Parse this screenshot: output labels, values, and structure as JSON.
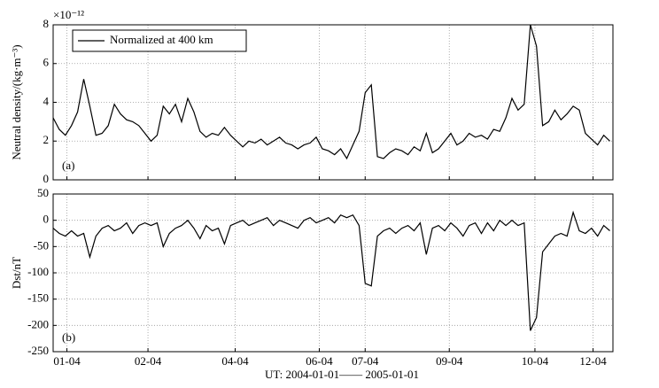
{
  "chart_data": [
    {
      "type": "line",
      "ylabel": "Neutral density/(kg·m⁻³)",
      "y_multiplier": "×10⁻¹²",
      "panel_label": "(a)",
      "legend": "upper left",
      "grid": true,
      "x": [
        0,
        4,
        8,
        12,
        16,
        20,
        24,
        28,
        32,
        36,
        40,
        44,
        48,
        52,
        56,
        60,
        64,
        68,
        72,
        76,
        80,
        84,
        88,
        92,
        96,
        100,
        104,
        108,
        112,
        116,
        120,
        124,
        128,
        132,
        136,
        140,
        144,
        148,
        152,
        156,
        160,
        164,
        168,
        172,
        176,
        180,
        184,
        188,
        192,
        196,
        200,
        204,
        208,
        212,
        216,
        220,
        224,
        228,
        232,
        236,
        240,
        244,
        248,
        252,
        256,
        260,
        264,
        268,
        272,
        276,
        280,
        284,
        288,
        292,
        296,
        300,
        304,
        308,
        312,
        316,
        320,
        324,
        328,
        332,
        336,
        340,
        344,
        348,
        352,
        356,
        360,
        364
      ],
      "xlim": [
        0,
        366
      ],
      "xticks": [
        {
          "value": 9,
          "label": "01-04"
        },
        {
          "value": 62,
          "label": "02-04"
        },
        {
          "value": 119,
          "label": "04-04"
        },
        {
          "value": 174,
          "label": "06-04"
        },
        {
          "value": 204,
          "label": "07-04"
        },
        {
          "value": 259,
          "label": "09-04"
        },
        {
          "value": 315,
          "label": "10-04"
        },
        {
          "value": 353,
          "label": "12-04"
        }
      ],
      "ylim": [
        0,
        8
      ],
      "yticks": [
        0,
        2,
        4,
        6,
        8
      ],
      "series": [
        {
          "name": "Normalized at 400 km",
          "color": "#000000",
          "values": [
            3.2,
            2.6,
            2.3,
            2.8,
            3.5,
            5.2,
            3.8,
            2.3,
            2.4,
            2.8,
            3.9,
            3.4,
            3.1,
            3.0,
            2.8,
            2.4,
            2.0,
            2.3,
            3.8,
            3.4,
            3.9,
            3.0,
            4.2,
            3.5,
            2.5,
            2.2,
            2.4,
            2.3,
            2.7,
            2.3,
            2.0,
            1.7,
            2.0,
            1.9,
            2.1,
            1.8,
            2.0,
            2.2,
            1.9,
            1.8,
            1.6,
            1.8,
            1.9,
            2.2,
            1.6,
            1.5,
            1.3,
            1.6,
            1.1,
            1.8,
            2.5,
            4.5,
            4.9,
            1.2,
            1.1,
            1.4,
            1.6,
            1.5,
            1.3,
            1.7,
            1.5,
            2.4,
            1.4,
            1.6,
            2.0,
            2.4,
            1.8,
            2.0,
            2.4,
            2.2,
            2.3,
            2.1,
            2.6,
            2.5,
            3.2,
            4.2,
            3.6,
            3.9,
            8.0,
            6.9,
            2.8,
            3.0,
            3.6,
            3.1,
            3.4,
            3.8,
            3.6,
            2.4,
            2.1,
            1.8,
            2.3,
            2.0
          ]
        }
      ]
    },
    {
      "type": "line",
      "ylabel": "Dst/nT",
      "panel_label": "(b)",
      "xlabel": "UT: 2004-01-01—— 2005-01-01",
      "grid": true,
      "x": [
        0,
        4,
        8,
        12,
        16,
        20,
        24,
        28,
        32,
        36,
        40,
        44,
        48,
        52,
        56,
        60,
        64,
        68,
        72,
        76,
        80,
        84,
        88,
        92,
        96,
        100,
        104,
        108,
        112,
        116,
        120,
        124,
        128,
        132,
        136,
        140,
        144,
        148,
        152,
        156,
        160,
        164,
        168,
        172,
        176,
        180,
        184,
        188,
        192,
        196,
        200,
        204,
        208,
        212,
        216,
        220,
        224,
        228,
        232,
        236,
        240,
        244,
        248,
        252,
        256,
        260,
        264,
        268,
        272,
        276,
        280,
        284,
        288,
        292,
        296,
        300,
        304,
        308,
        312,
        316,
        320,
        324,
        328,
        332,
        336,
        340,
        344,
        348,
        352,
        356,
        360,
        364
      ],
      "xlim": [
        0,
        366
      ],
      "xticks": [
        {
          "value": 9,
          "label": "01-04"
        },
        {
          "value": 62,
          "label": "02-04"
        },
        {
          "value": 119,
          "label": "04-04"
        },
        {
          "value": 174,
          "label": "06-04"
        },
        {
          "value": 204,
          "label": "07-04"
        },
        {
          "value": 259,
          "label": "09-04"
        },
        {
          "value": 315,
          "label": "10-04"
        },
        {
          "value": 353,
          "label": "12-04"
        }
      ],
      "ylim": [
        -250,
        50
      ],
      "yticks": [
        50,
        0,
        -50,
        -100,
        -150,
        -200,
        -250
      ],
      "series": [
        {
          "color": "#000000",
          "values": [
            -15,
            -25,
            -30,
            -20,
            -30,
            -25,
            -70,
            -30,
            -15,
            -10,
            -20,
            -15,
            -5,
            -25,
            -10,
            -5,
            -10,
            -5,
            -50,
            -25,
            -15,
            -10,
            0,
            -15,
            -35,
            -10,
            -20,
            -15,
            -45,
            -10,
            -5,
            0,
            -10,
            -5,
            0,
            5,
            -10,
            0,
            -5,
            -10,
            -15,
            0,
            5,
            -5,
            0,
            5,
            -5,
            10,
            5,
            10,
            -10,
            -120,
            -125,
            -30,
            -20,
            -15,
            -25,
            -15,
            -10,
            -20,
            -5,
            -65,
            -15,
            -10,
            -20,
            -5,
            -15,
            -30,
            -10,
            -5,
            -25,
            -5,
            -20,
            0,
            -10,
            0,
            -10,
            -5,
            -210,
            -185,
            -60,
            -45,
            -30,
            -25,
            -30,
            15,
            -20,
            -25,
            -15,
            -30,
            -10,
            -20
          ]
        }
      ]
    }
  ]
}
